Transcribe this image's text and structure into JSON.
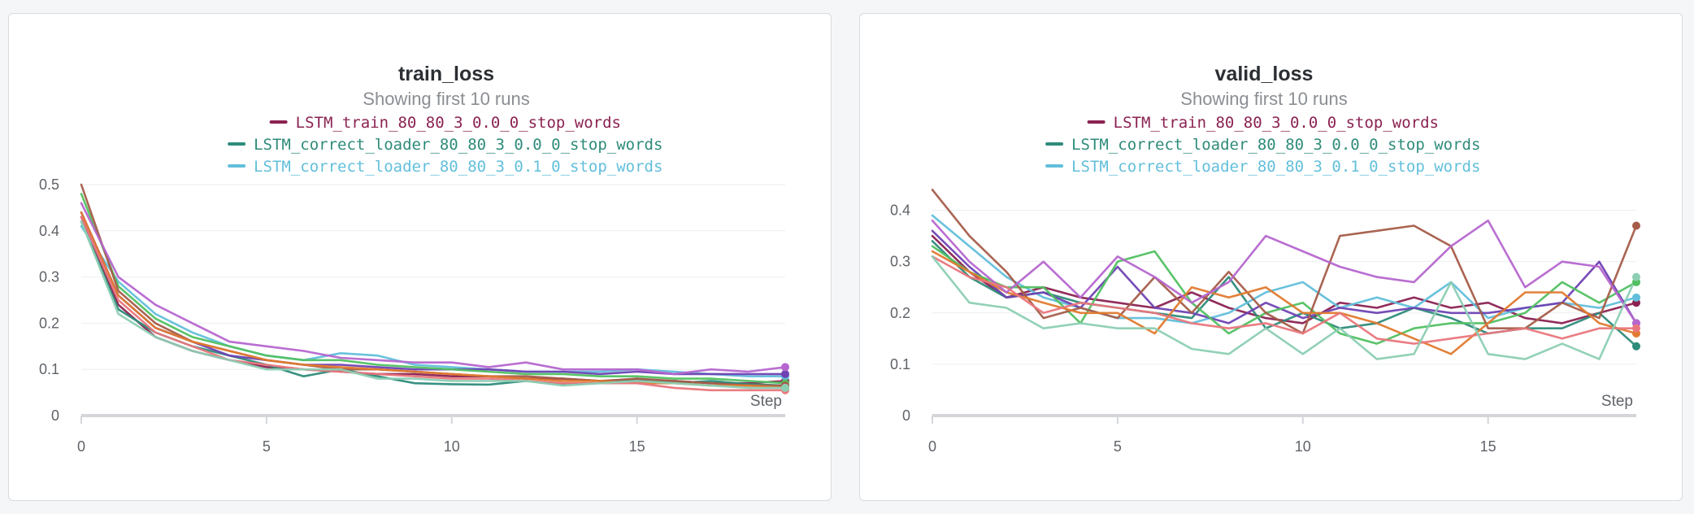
{
  "colors": {
    "LSTM_train_80_80_3_0.0_0_stop_words": "#8b2252",
    "LSTM_correct_loader_80_80_3_0.0_0_stop_words": "#2e8b7a",
    "LSTM_correct_loader_80_80_3_0.1_0_stop_words": "#62bfdb",
    "run4": "#6f42b4",
    "run5": "#51c061",
    "run6": "#a55d4a",
    "run7": "#e07a2f",
    "run8": "#b566cf",
    "run9": "#e9767c",
    "run10": "#8ccfb3"
  },
  "chart_data": [
    {
      "type": "line",
      "title": "train_loss",
      "subtitle": "Showing first 10 runs",
      "xlabel": "Step",
      "ylabel": "",
      "xlim": [
        0,
        19
      ],
      "ylim": [
        0,
        0.5
      ],
      "xticks": [
        0,
        5,
        10,
        15
      ],
      "yticks": [
        0,
        0.1,
        0.2,
        0.3,
        0.4,
        0.5
      ],
      "grid": true,
      "legend": {
        "position": "top",
        "entries": [
          "LSTM_train_80_80_3_0.0_0_stop_words",
          "LSTM_correct_loader_80_80_3_0.0_0_stop_words",
          "LSTM_correct_loader_80_80_3_0.1_0_stop_words"
        ]
      },
      "x": [
        0,
        1,
        2,
        3,
        4,
        5,
        6,
        7,
        8,
        9,
        10,
        11,
        12,
        13,
        14,
        15,
        16,
        17,
        18,
        19
      ],
      "series": [
        {
          "name": "LSTM_train_80_80_3_0.0_0_stop_words",
          "color_key": "LSTM_train_80_80_3_0.0_0_stop_words",
          "values": [
            0.43,
            0.24,
            0.17,
            0.14,
            0.12,
            0.105,
            0.1,
            0.095,
            0.09,
            0.09,
            0.085,
            0.085,
            0.08,
            0.08,
            0.075,
            0.075,
            0.075,
            0.07,
            0.07,
            0.075
          ]
        },
        {
          "name": "LSTM_correct_loader_80_80_3_0.0_0_stop_words",
          "color_key": "LSTM_correct_loader_80_80_3_0.0_0_stop_words",
          "values": [
            0.42,
            0.23,
            0.18,
            0.15,
            0.13,
            0.11,
            0.085,
            0.1,
            0.085,
            0.07,
            0.068,
            0.067,
            0.075,
            0.068,
            0.07,
            0.08,
            0.07,
            0.075,
            0.068,
            0.065
          ]
        },
        {
          "name": "LSTM_correct_loader_80_80_3_0.1_0_stop_words",
          "color_key": "LSTM_correct_loader_80_80_3_0.1_0_stop_words",
          "values": [
            0.41,
            0.29,
            0.22,
            0.18,
            0.15,
            0.13,
            0.12,
            0.135,
            0.13,
            0.11,
            0.105,
            0.1,
            0.095,
            0.095,
            0.095,
            0.1,
            0.095,
            0.09,
            0.085,
            0.085
          ]
        },
        {
          "name": "",
          "color_key": "run4",
          "values": [
            0.44,
            0.26,
            0.19,
            0.16,
            0.13,
            0.12,
            0.11,
            0.11,
            0.105,
            0.1,
            0.1,
            0.1,
            0.095,
            0.095,
            0.09,
            0.095,
            0.09,
            0.09,
            0.09,
            0.09
          ]
        },
        {
          "name": "",
          "color_key": "run5",
          "values": [
            0.48,
            0.28,
            0.21,
            0.17,
            0.15,
            0.13,
            0.12,
            0.12,
            0.11,
            0.105,
            0.1,
            0.095,
            0.09,
            0.09,
            0.085,
            0.085,
            0.08,
            0.08,
            0.075,
            0.07
          ]
        },
        {
          "name": "",
          "color_key": "run6",
          "values": [
            0.5,
            0.27,
            0.2,
            0.16,
            0.14,
            0.12,
            0.11,
            0.1,
            0.1,
            0.095,
            0.09,
            0.085,
            0.085,
            0.08,
            0.075,
            0.08,
            0.075,
            0.07,
            0.065,
            0.065
          ]
        },
        {
          "name": "",
          "color_key": "run7",
          "values": [
            0.44,
            0.26,
            0.19,
            0.16,
            0.14,
            0.12,
            0.11,
            0.105,
            0.1,
            0.095,
            0.09,
            0.085,
            0.08,
            0.075,
            0.075,
            0.07,
            0.07,
            0.065,
            0.065,
            0.06
          ]
        },
        {
          "name": "",
          "color_key": "run8",
          "values": [
            0.46,
            0.3,
            0.24,
            0.2,
            0.16,
            0.15,
            0.14,
            0.125,
            0.12,
            0.115,
            0.115,
            0.105,
            0.115,
            0.1,
            0.1,
            0.1,
            0.09,
            0.1,
            0.095,
            0.105
          ]
        },
        {
          "name": "",
          "color_key": "run9",
          "values": [
            0.43,
            0.25,
            0.18,
            0.15,
            0.12,
            0.11,
            0.1,
            0.095,
            0.09,
            0.085,
            0.08,
            0.08,
            0.075,
            0.07,
            0.07,
            0.07,
            0.06,
            0.055,
            0.055,
            0.055
          ]
        },
        {
          "name": "",
          "color_key": "run10",
          "values": [
            0.42,
            0.22,
            0.17,
            0.14,
            0.12,
            0.1,
            0.1,
            0.1,
            0.08,
            0.08,
            0.075,
            0.075,
            0.075,
            0.065,
            0.07,
            0.075,
            0.07,
            0.065,
            0.06,
            0.06
          ]
        }
      ]
    },
    {
      "type": "line",
      "title": "valid_loss",
      "subtitle": "Showing first 10 runs",
      "xlabel": "Step",
      "ylabel": "",
      "xlim": [
        0,
        19
      ],
      "ylim": [
        0,
        0.45
      ],
      "xticks": [
        0,
        5,
        10,
        15
      ],
      "yticks": [
        0,
        0.1,
        0.2,
        0.3,
        0.4
      ],
      "grid": true,
      "legend": {
        "position": "top",
        "entries": [
          "LSTM_train_80_80_3_0.0_0_stop_words",
          "LSTM_correct_loader_80_80_3_0.0_0_stop_words",
          "LSTM_correct_loader_80_80_3_0.1_0_stop_words"
        ]
      },
      "x": [
        0,
        1,
        2,
        3,
        4,
        5,
        6,
        7,
        8,
        9,
        10,
        11,
        12,
        13,
        14,
        15,
        16,
        17,
        18,
        19
      ],
      "series": [
        {
          "name": "LSTM_train_80_80_3_0.0_0_stop_words",
          "color_key": "LSTM_train_80_80_3_0.0_0_stop_words",
          "values": [
            0.35,
            0.28,
            0.23,
            0.25,
            0.23,
            0.22,
            0.21,
            0.24,
            0.21,
            0.19,
            0.18,
            0.22,
            0.21,
            0.23,
            0.21,
            0.22,
            0.19,
            0.18,
            0.2,
            0.22
          ]
        },
        {
          "name": "LSTM_correct_loader_80_80_3_0.0_0_stop_words",
          "color_key": "LSTM_correct_loader_80_80_3_0.0_0_stop_words",
          "values": [
            0.34,
            0.27,
            0.23,
            0.24,
            0.22,
            0.21,
            0.2,
            0.19,
            0.27,
            0.17,
            0.2,
            0.17,
            0.18,
            0.21,
            0.19,
            0.16,
            0.17,
            0.17,
            0.2,
            0.135
          ]
        },
        {
          "name": "LSTM_correct_loader_80_80_3_0.1_0_stop_words",
          "color_key": "LSTM_correct_loader_80_80_3_0.1_0_stop_words",
          "values": [
            0.39,
            0.33,
            0.27,
            0.23,
            0.21,
            0.19,
            0.19,
            0.18,
            0.2,
            0.24,
            0.26,
            0.21,
            0.23,
            0.21,
            0.26,
            0.19,
            0.21,
            0.22,
            0.21,
            0.23
          ]
        },
        {
          "name": "",
          "color_key": "run4",
          "values": [
            0.36,
            0.29,
            0.23,
            0.24,
            0.21,
            0.29,
            0.21,
            0.2,
            0.18,
            0.22,
            0.19,
            0.21,
            0.2,
            0.21,
            0.2,
            0.2,
            0.21,
            0.22,
            0.3,
            0.18
          ]
        },
        {
          "name": "",
          "color_key": "run5",
          "values": [
            0.33,
            0.28,
            0.25,
            0.25,
            0.18,
            0.3,
            0.32,
            0.22,
            0.16,
            0.2,
            0.22,
            0.16,
            0.14,
            0.17,
            0.18,
            0.18,
            0.2,
            0.26,
            0.22,
            0.26
          ]
        },
        {
          "name": "",
          "color_key": "run6",
          "values": [
            0.44,
            0.35,
            0.28,
            0.19,
            0.21,
            0.19,
            0.27,
            0.2,
            0.28,
            0.2,
            0.16,
            0.35,
            0.36,
            0.37,
            0.33,
            0.17,
            0.17,
            0.22,
            0.19,
            0.37
          ]
        },
        {
          "name": "",
          "color_key": "run7",
          "values": [
            0.32,
            0.28,
            0.24,
            0.22,
            0.2,
            0.2,
            0.16,
            0.25,
            0.23,
            0.25,
            0.2,
            0.2,
            0.18,
            0.15,
            0.12,
            0.18,
            0.24,
            0.24,
            0.18,
            0.16
          ]
        },
        {
          "name": "",
          "color_key": "run8",
          "values": [
            0.38,
            0.3,
            0.24,
            0.3,
            0.23,
            0.31,
            0.27,
            0.22,
            0.26,
            0.35,
            0.32,
            0.29,
            0.27,
            0.26,
            0.33,
            0.38,
            0.25,
            0.3,
            0.29,
            0.18
          ]
        },
        {
          "name": "",
          "color_key": "run9",
          "values": [
            0.31,
            0.27,
            0.25,
            0.2,
            0.22,
            0.21,
            0.2,
            0.18,
            0.17,
            0.18,
            0.16,
            0.2,
            0.15,
            0.14,
            0.15,
            0.16,
            0.17,
            0.15,
            0.17,
            0.17
          ]
        },
        {
          "name": "",
          "color_key": "run10",
          "values": [
            0.31,
            0.22,
            0.21,
            0.17,
            0.18,
            0.17,
            0.17,
            0.13,
            0.12,
            0.17,
            0.12,
            0.17,
            0.11,
            0.12,
            0.26,
            0.12,
            0.11,
            0.14,
            0.11,
            0.27
          ]
        }
      ]
    }
  ]
}
